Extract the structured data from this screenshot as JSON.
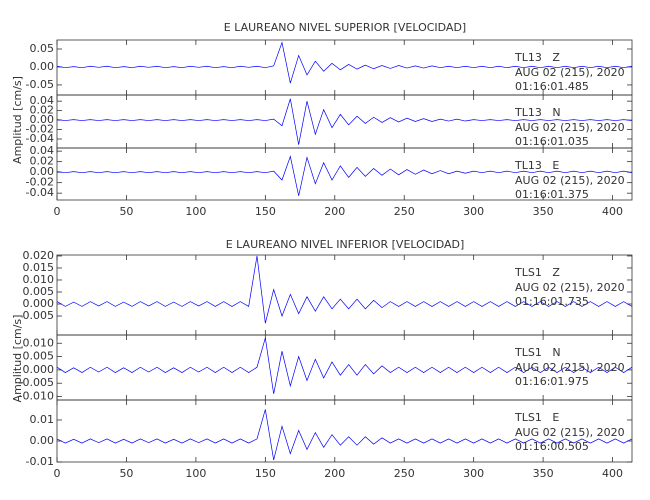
{
  "chart_data": [
    {
      "type": "line",
      "title": "E LAUREANO NIVEL SUPERIOR [VELOCIDAD]",
      "y_label": "Amplitud [cm/s]",
      "xlim": [
        0,
        414
      ],
      "xticks": [
        0,
        50,
        100,
        150,
        200,
        250,
        300,
        350,
        400
      ],
      "x": [
        0,
        6,
        12,
        18,
        24,
        30,
        36,
        42,
        48,
        54,
        60,
        66,
        72,
        78,
        84,
        90,
        96,
        102,
        108,
        114,
        120,
        126,
        132,
        138,
        144,
        150,
        156,
        162,
        168,
        174,
        180,
        186,
        192,
        198,
        204,
        210,
        216,
        222,
        228,
        234,
        240,
        246,
        252,
        258,
        264,
        270,
        276,
        282,
        288,
        294,
        300,
        306,
        312,
        318,
        324,
        330,
        336,
        342,
        348,
        354,
        360,
        366,
        372,
        378,
        384,
        390,
        396,
        402,
        408,
        414
      ],
      "series": [
        {
          "name": "TL13   Z",
          "date": "AUG 02 (215), 2020",
          "time": "01:16:01.485",
          "color": "#0000ff",
          "ylim": [
            -0.078,
            0.075
          ],
          "yticks": [
            0.05,
            {
              "value": 0,
              "label": "0.00"
            },
            -0.05
          ],
          "values": [
            0.002,
            -0.002,
            0.001,
            -0.002,
            0.002,
            -0.001,
            0.002,
            -0.002,
            0.001,
            -0.002,
            0.002,
            -0.001,
            0.002,
            -0.002,
            0.001,
            -0.002,
            0.002,
            -0.001,
            0.002,
            -0.002,
            0.001,
            -0.002,
            0.002,
            -0.001,
            0.002,
            -0.002,
            0.003,
            0.068,
            -0.045,
            0.032,
            -0.022,
            0.016,
            -0.012,
            0.01,
            -0.008,
            0.007,
            -0.006,
            0.005,
            -0.005,
            0.004,
            -0.004,
            0.004,
            -0.003,
            0.003,
            -0.003,
            0.003,
            -0.002,
            0.002,
            -0.002,
            0.002,
            -0.002,
            0.002,
            -0.002,
            0.002,
            -0.002,
            0.002,
            -0.002,
            0.002,
            -0.002,
            0.002,
            -0.002,
            0.002,
            -0.002,
            0.002,
            -0.002,
            0.002,
            -0.002,
            0.002,
            -0.002,
            0.002
          ]
        },
        {
          "name": "TL13   N",
          "date": "AUG 02 (215), 2020",
          "time": "01:16:01.035",
          "color": "#0000ff",
          "ylim": [
            -0.059,
            0.053
          ],
          "yticks": [
            0.04,
            0.02,
            {
              "value": 0,
              "label": "0.00"
            },
            -0.02,
            -0.04
          ],
          "values": [
            0.001,
            -0.001,
            0.001,
            -0.001,
            0.001,
            -0.001,
            0.001,
            -0.001,
            0.001,
            -0.001,
            0.001,
            -0.001,
            0.001,
            -0.001,
            0.001,
            -0.001,
            0.001,
            -0.001,
            0.001,
            -0.001,
            0.001,
            -0.001,
            0.001,
            -0.001,
            0.001,
            -0.001,
            0.002,
            -0.012,
            0.045,
            -0.052,
            0.04,
            -0.03,
            0.022,
            -0.016,
            0.012,
            -0.01,
            0.008,
            -0.007,
            0.006,
            -0.005,
            0.005,
            -0.004,
            0.004,
            -0.003,
            0.003,
            -0.003,
            0.002,
            -0.002,
            0.002,
            -0.002,
            0.001,
            -0.001,
            0.001,
            -0.001,
            0.001,
            -0.001,
            0.001,
            -0.001,
            0.001,
            -0.001,
            0.001,
            -0.001,
            0.001,
            -0.001,
            0.001,
            -0.001,
            0.001,
            -0.001,
            0.001,
            -0.001
          ]
        },
        {
          "name": "TL13   E",
          "date": "AUG 02 (215), 2020",
          "time": "01:16:01.375",
          "color": "#0000ff",
          "ylim": [
            -0.053,
            0.046
          ],
          "yticks": [
            0.04,
            0.02,
            {
              "value": 0,
              "label": "0.00"
            },
            -0.02,
            -0.04
          ],
          "values": [
            0.001,
            -0.001,
            0.001,
            -0.001,
            0.001,
            -0.001,
            0.001,
            -0.001,
            0.001,
            -0.001,
            0.001,
            -0.001,
            0.001,
            -0.001,
            0.001,
            -0.001,
            0.001,
            -0.001,
            0.001,
            -0.001,
            0.001,
            -0.001,
            0.001,
            -0.001,
            0.001,
            -0.001,
            0.002,
            -0.015,
            0.03,
            -0.045,
            0.028,
            -0.022,
            0.018,
            -0.015,
            0.012,
            -0.01,
            0.009,
            -0.008,
            0.007,
            -0.006,
            0.006,
            -0.005,
            0.005,
            -0.004,
            0.004,
            -0.003,
            0.003,
            -0.003,
            0.002,
            -0.002,
            0.002,
            -0.001,
            0.002,
            -0.001,
            0.002,
            -0.001,
            0.002,
            -0.001,
            0.002,
            -0.001,
            0.002,
            -0.001,
            0.002,
            -0.001,
            0.002,
            -0.001,
            0.002,
            -0.001,
            0.002,
            -0.001
          ]
        }
      ]
    },
    {
      "type": "line",
      "title": "E LAUREANO NIVEL INFERIOR [VELOCIDAD]",
      "y_label": "Amplitud [cm/s]",
      "xlim": [
        0,
        414
      ],
      "xticks": [
        0,
        50,
        100,
        150,
        200,
        250,
        300,
        350,
        400
      ],
      "x": [
        0,
        6,
        12,
        18,
        24,
        30,
        36,
        42,
        48,
        54,
        60,
        66,
        72,
        78,
        84,
        90,
        96,
        102,
        108,
        114,
        120,
        126,
        132,
        138,
        144,
        150,
        156,
        162,
        168,
        174,
        180,
        186,
        192,
        198,
        204,
        210,
        216,
        222,
        228,
        234,
        240,
        246,
        252,
        258,
        264,
        270,
        276,
        282,
        288,
        294,
        300,
        306,
        312,
        318,
        324,
        330,
        336,
        342,
        348,
        354,
        360,
        366,
        372,
        378,
        384,
        390,
        396,
        402,
        408,
        414
      ],
      "series": [
        {
          "name": "TLS1   Z",
          "date": "AUG 02 (215), 2020",
          "time": "01:16:01.735",
          "color": "#0000ff",
          "ylim": [
            -0.0129,
            0.0204
          ],
          "yticks": [
            {
              "value": 0.02,
              "label": "0.020"
            },
            0.015,
            {
              "value": 0.01,
              "label": "0.010"
            },
            0.005,
            {
              "value": 0,
              "label": "0.000"
            },
            -0.005
          ],
          "values": [
            0.001,
            -0.001,
            0.0008,
            -0.001,
            0.001,
            -0.0008,
            0.001,
            -0.001,
            0.0008,
            -0.001,
            0.001,
            -0.0008,
            0.001,
            -0.001,
            0.0008,
            -0.001,
            0.001,
            -0.0008,
            0.001,
            -0.001,
            0.001,
            -0.001,
            0.001,
            -0.001,
            0.02,
            -0.008,
            0.006,
            -0.005,
            0.004,
            -0.004,
            0.003,
            -0.003,
            0.003,
            -0.002,
            0.002,
            -0.002,
            0.002,
            -0.002,
            0.0015,
            -0.0015,
            0.001,
            -0.001,
            0.001,
            -0.001,
            0.001,
            -0.001,
            0.001,
            -0.001,
            0.001,
            -0.001,
            0.001,
            -0.001,
            0.001,
            -0.001,
            0.001,
            -0.001,
            0.001,
            -0.001,
            0.001,
            -0.001,
            0.001,
            -0.001,
            0.001,
            -0.001,
            0.001,
            -0.001,
            0.001,
            -0.001,
            0.001,
            -0.001
          ]
        },
        {
          "name": "TLS1   N",
          "date": "AUG 02 (215), 2020",
          "time": "01:16:01.975",
          "color": "#0000ff",
          "ylim": [
            -0.0113,
            0.0131
          ],
          "yticks": [
            {
              "value": 0.01,
              "label": "0.010"
            },
            0.005,
            {
              "value": 0,
              "label": "0.000"
            },
            -0.005,
            {
              "value": -0.01,
              "label": "-0.010"
            }
          ],
          "values": [
            0.001,
            -0.001,
            0.0008,
            -0.001,
            0.001,
            -0.0008,
            0.001,
            -0.001,
            0.0008,
            -0.001,
            0.001,
            -0.0008,
            0.001,
            -0.001,
            0.0008,
            -0.001,
            0.001,
            -0.0008,
            0.001,
            -0.001,
            0.001,
            -0.001,
            0.001,
            -0.001,
            0.001,
            0.012,
            -0.009,
            0.007,
            -0.006,
            0.005,
            -0.004,
            0.004,
            -0.003,
            0.003,
            -0.002,
            0.002,
            -0.002,
            0.002,
            -0.0015,
            0.0015,
            -0.001,
            0.001,
            -0.001,
            0.001,
            -0.001,
            0.001,
            -0.001,
            0.001,
            -0.001,
            0.001,
            -0.001,
            0.001,
            -0.001,
            0.001,
            -0.001,
            0.001,
            -0.001,
            0.001,
            -0.001,
            0.001,
            -0.001,
            0.001,
            -0.001,
            0.001,
            -0.001,
            0.001,
            -0.001,
            0.001,
            -0.001,
            0.001
          ]
        },
        {
          "name": "TLS1   E",
          "date": "AUG 02 (215), 2020",
          "time": "01:16:00.505",
          "color": "#0000ff",
          "ylim": [
            -0.01,
            0.0195
          ],
          "yticks": [
            0.01,
            {
              "value": 0,
              "label": "0.00"
            },
            -0.01
          ],
          "values": [
            0.001,
            -0.001,
            0.0008,
            -0.001,
            0.001,
            -0.0008,
            0.001,
            -0.001,
            0.0008,
            -0.001,
            0.001,
            -0.0008,
            0.001,
            -0.001,
            0.0008,
            -0.001,
            0.001,
            -0.0008,
            0.001,
            -0.001,
            0.001,
            -0.001,
            0.001,
            -0.001,
            0.001,
            0.015,
            -0.009,
            0.007,
            -0.006,
            0.005,
            -0.004,
            0.004,
            -0.003,
            0.003,
            -0.002,
            0.002,
            -0.002,
            0.002,
            -0.0015,
            0.0015,
            -0.001,
            0.001,
            -0.001,
            0.001,
            -0.001,
            0.001,
            -0.001,
            0.001,
            -0.001,
            0.001,
            -0.001,
            0.001,
            -0.001,
            0.001,
            -0.001,
            0.001,
            -0.001,
            0.001,
            -0.001,
            0.001,
            -0.001,
            0.001,
            -0.001,
            0.001,
            -0.001,
            0.001,
            -0.001,
            0.001,
            -0.001,
            0.001
          ]
        }
      ]
    }
  ]
}
